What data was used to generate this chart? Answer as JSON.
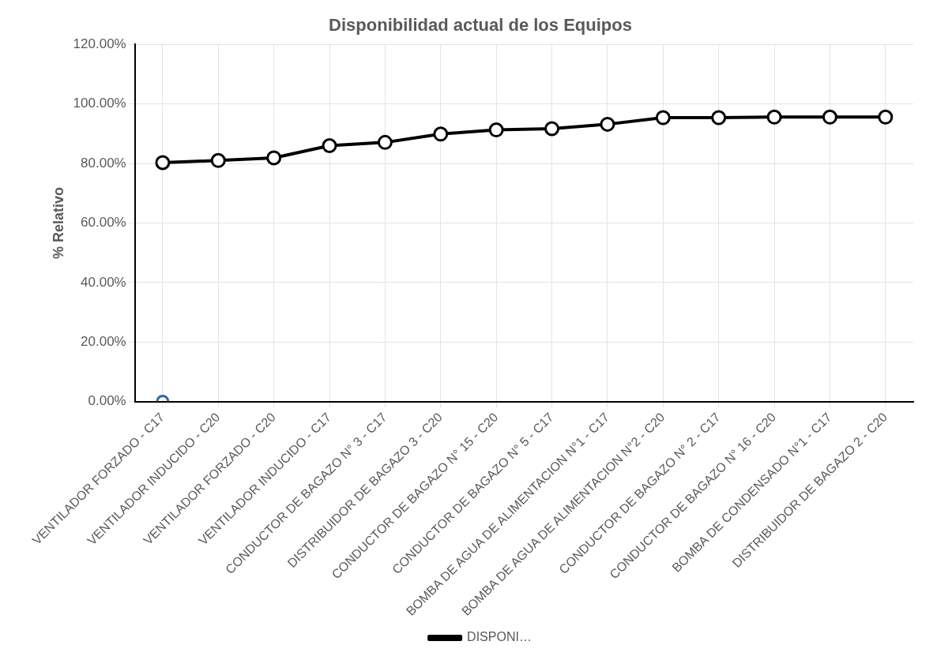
{
  "chart_data": {
    "type": "line",
    "title": "Disponibilidad actual de los Equipos",
    "ylabel": "% Relativo",
    "categories": [
      "VENTILADOR FORZADO - C17",
      "VENTILADOR INDUCIDO - C20",
      "VENTILADOR FORZADO - C20",
      "VENTILADOR INDUCIDO - C17",
      "CONDUCTOR DE BAGAZO N° 3 - C17",
      "DISTRIBUIDOR DE BAGAZO 3 - C20",
      "CONDUCTOR DE BAGAZO N° 15 - C20",
      "CONDUCTOR DE BAGAZO N° 5 - C17",
      "BOMBA DE AGUA DE ALIMENTACION N°1 - C17",
      "BOMBA DE AGUA DE ALIMENTACION N°2 - C20",
      "CONDUCTOR DE BAGAZO N° 2 - C17",
      "CONDUCTOR DE BAGAZO N° 16 - C20",
      "BOMBA DE CONDENSADO N°1 - C17",
      "DISTRIBUIDOR DE BAGAZO 2 - C20"
    ],
    "series": [
      {
        "name": "DISPONI…",
        "color": "#000000",
        "values": [
          80.3,
          81.0,
          81.9,
          86.0,
          87.1,
          89.9,
          91.3,
          91.7,
          93.2,
          95.4,
          95.4,
          95.6,
          95.6,
          95.6
        ]
      },
      {
        "type": "scatter",
        "color": "#2e6aa6",
        "x": [
          "VENTILADOR FORZADO - C17"
        ],
        "values": [
          0
        ]
      }
    ],
    "ylim": [
      0,
      120
    ],
    "yticks": [
      {
        "value": 0,
        "label": "0.00%"
      },
      {
        "value": 20,
        "label": "20.00%"
      },
      {
        "value": 40,
        "label": "40.00%"
      },
      {
        "value": 60,
        "label": "60.00%"
      },
      {
        "value": 80,
        "label": "80.00%"
      },
      {
        "value": 100,
        "label": "100.00%"
      },
      {
        "value": 120,
        "label": "120.00%"
      }
    ],
    "grid": true,
    "legend": "bottom",
    "marker": "circle",
    "line_style": "solid"
  }
}
